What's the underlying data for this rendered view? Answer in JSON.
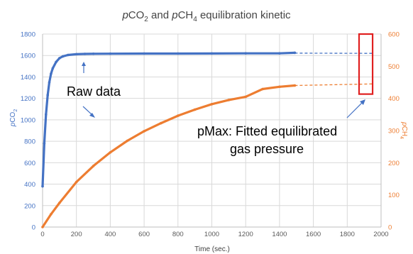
{
  "chart_data": {
    "type": "line",
    "title": "pCO2 and pCH4 equilibration kinetic",
    "title_parts": {
      "p1": "p",
      "co": "CO",
      "sub2": "2",
      "mid": " and ",
      "p2": "p",
      "ch": "CH",
      "sub4": "4",
      "tail": " equilibration kinetic"
    },
    "xlabel": "Time (sec.)",
    "ylabel_left": {
      "p": "p",
      "base": "CO",
      "sub": "2"
    },
    "ylabel_right": {
      "p": "p",
      "base": "CH",
      "sub": "4"
    },
    "xlim": [
      0,
      2000
    ],
    "ylim_left": [
      0,
      1800
    ],
    "ylim_right": [
      0,
      600
    ],
    "x_ticks": [
      "0",
      "200",
      "400",
      "600",
      "800",
      "1000",
      "1200",
      "1400",
      "1600",
      "1800",
      "2000"
    ],
    "y_left_ticks": [
      "0",
      "200",
      "400",
      "600",
      "800",
      "1000",
      "1200",
      "1400",
      "1600",
      "1800"
    ],
    "y_right_ticks": [
      "0",
      "100",
      "200",
      "300",
      "400",
      "500",
      "600"
    ],
    "grid": true,
    "series": [
      {
        "name": "pCO2",
        "axis": "left",
        "color": "#4472C4",
        "x": [
          0,
          10,
          20,
          30,
          40,
          50,
          60,
          80,
          100,
          120,
          150,
          200,
          250,
          300,
          400,
          600,
          800,
          1000,
          1200,
          1400,
          1490
        ],
        "y": [
          380,
          780,
          1050,
          1230,
          1350,
          1430,
          1480,
          1540,
          1575,
          1592,
          1605,
          1612,
          1615,
          1616,
          1617,
          1618,
          1618,
          1619,
          1620,
          1620,
          1625
        ]
      },
      {
        "name": "pCH4",
        "axis": "right",
        "color": "#ED7D31",
        "x": [
          0,
          50,
          100,
          200,
          300,
          400,
          500,
          600,
          700,
          800,
          900,
          1000,
          1100,
          1200,
          1300,
          1400,
          1490
        ],
        "y": [
          0,
          40,
          75,
          140,
          190,
          232,
          268,
          298,
          323,
          346,
          365,
          382,
          395,
          405,
          429,
          436,
          440
        ]
      }
    ],
    "fits": [
      {
        "axis": "left",
        "color": "#4472C4",
        "x": [
          1490,
          1950
        ],
        "y": [
          1622,
          1620
        ]
      },
      {
        "axis": "right",
        "color": "#ED7D31",
        "x": [
          1490,
          1950
        ],
        "y": [
          440,
          445
        ]
      }
    ],
    "annotations": {
      "raw_data": "Raw data",
      "pmax_line1": "pMax: Fitted equilibrated",
      "pmax_line2": "gas pressure"
    },
    "highlight_box": {
      "x_range": [
        1870,
        1950
      ],
      "y_left_range": [
        1240,
        1800
      ],
      "color": "#E02020"
    }
  }
}
